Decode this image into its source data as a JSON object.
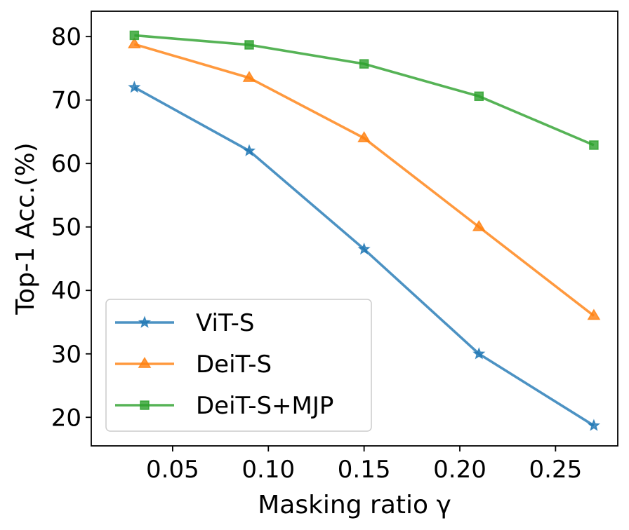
{
  "chart_data": {
    "type": "line",
    "xlabel": "Masking ratio γ",
    "ylabel": "Top-1 Acc.(%)",
    "x": [
      0.03,
      0.09,
      0.15,
      0.21,
      0.27
    ],
    "xlim": [
      0.0075,
      0.2825
    ],
    "ylim": [
      15.5,
      84
    ],
    "xticks": [
      0.05,
      0.1,
      0.15,
      0.2,
      0.25
    ],
    "xtick_labels": [
      "0.05",
      "0.10",
      "0.15",
      "0.20",
      "0.25"
    ],
    "yticks": [
      20,
      30,
      40,
      50,
      60,
      70,
      80
    ],
    "ytick_labels": [
      "20",
      "30",
      "40",
      "50",
      "60",
      "70",
      "80"
    ],
    "grid": false,
    "legend_position": "lower-left",
    "series": [
      {
        "name": "ViT-S",
        "values": [
          72.0,
          62.0,
          46.5,
          30.0,
          18.7
        ],
        "color": "#1f77b4",
        "marker": "star"
      },
      {
        "name": "DeiT-S",
        "values": [
          78.8,
          73.5,
          64.0,
          50.0,
          36.0
        ],
        "color": "#ff7f0e",
        "marker": "triangle"
      },
      {
        "name": "DeiT-S+MJP",
        "values": [
          80.2,
          78.7,
          75.7,
          70.6,
          62.9
        ],
        "color": "#2ca02c",
        "marker": "square"
      }
    ]
  }
}
